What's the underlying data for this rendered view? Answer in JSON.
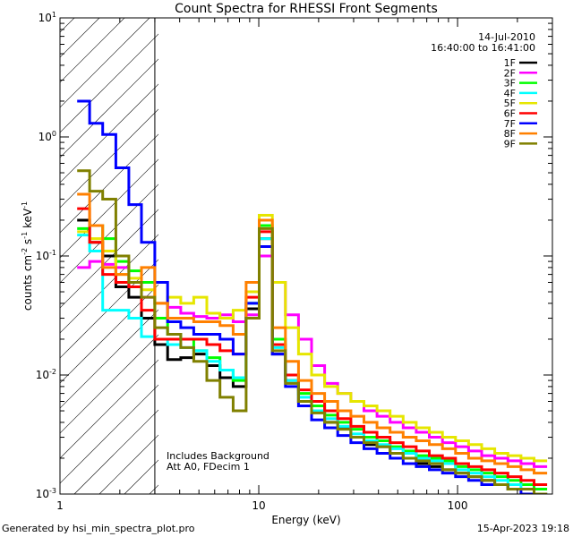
{
  "chart_data": {
    "type": "line",
    "title": "Count Spectra for RHESSI Front Segments",
    "xlabel": "Energy (keV)",
    "ylabel": {
      "prefix": "counts cm",
      "exp1": "-2",
      "mid1": " s",
      "exp2": "-1",
      "mid2": " keV",
      "exp3": "-1"
    },
    "xscale": "log",
    "yscale": "log",
    "xlim": [
      1,
      300
    ],
    "ylim": [
      0.001,
      10
    ],
    "x_ticks": [
      {
        "value": 1,
        "label": "1"
      },
      {
        "value": 10,
        "label": "10"
      },
      {
        "value": 100,
        "label": "100"
      }
    ],
    "y_ticks": [
      {
        "value": 0.001,
        "base": "10",
        "exp": "-3"
      },
      {
        "value": 0.01,
        "base": "10",
        "exp": "-2"
      },
      {
        "value": 0.1,
        "base": "10",
        "exp": "-1"
      },
      {
        "value": 1,
        "base": "10",
        "exp": "0"
      },
      {
        "value": 10,
        "base": "10",
        "exp": "1"
      }
    ],
    "legend_header": [
      "14-Jul-2010",
      "16:40:00 to 16:41:00"
    ],
    "legend_position": "top-right",
    "hatched_region": {
      "x_from": 1,
      "x_to": 3
    },
    "annotations": [
      "Includes Background",
      "Att A0, FDecim 1"
    ],
    "bin_edges": [
      1.22,
      1.41,
      1.64,
      1.91,
      2.22,
      2.57,
      3.0,
      3.48,
      4.05,
      4.71,
      5.48,
      6.38,
      7.43,
      8.64,
      10.05,
      11.7,
      13.61,
      15.84,
      18.43,
      21.45,
      24.96,
      29.05,
      33.8,
      39.33,
      45.77,
      53.26,
      61.98,
      72.12,
      83.93,
      97.67,
      113.65,
      132.25,
      153.9,
      179.09,
      208.4,
      242.51,
      282.2
    ],
    "series": [
      {
        "name": "1F",
        "color": "#000000",
        "values": [
          0.2,
          0.13,
          0.1,
          0.055,
          0.045,
          0.03,
          0.018,
          0.0135,
          0.014,
          0.015,
          0.012,
          0.0095,
          0.008,
          0.036,
          0.14,
          0.015,
          0.009,
          0.006,
          0.005,
          0.004,
          0.0036,
          0.003,
          0.0026,
          0.0025,
          0.0022,
          0.002,
          0.0018,
          0.0017,
          0.0016,
          0.0015,
          0.0014,
          0.0013,
          0.0012,
          0.0011,
          0.0011,
          0.001
        ]
      },
      {
        "name": "2F",
        "color": "#ff00ff",
        "values": [
          0.08,
          0.09,
          0.085,
          0.08,
          0.055,
          0.045,
          0.04,
          0.037,
          0.033,
          0.031,
          0.03,
          0.032,
          0.028,
          0.032,
          0.1,
          0.06,
          0.032,
          0.02,
          0.012,
          0.0085,
          0.007,
          0.006,
          0.005,
          0.0045,
          0.004,
          0.0036,
          0.0033,
          0.003,
          0.0027,
          0.0025,
          0.0023,
          0.0021,
          0.002,
          0.0019,
          0.0018,
          0.0017
        ]
      },
      {
        "name": "3F",
        "color": "#00ff00",
        "values": [
          0.17,
          0.18,
          0.14,
          0.09,
          0.075,
          0.06,
          0.03,
          0.022,
          0.02,
          0.016,
          0.014,
          0.011,
          0.009,
          0.04,
          0.18,
          0.02,
          0.01,
          0.007,
          0.0055,
          0.0046,
          0.004,
          0.0035,
          0.003,
          0.0028,
          0.0025,
          0.0023,
          0.0021,
          0.002,
          0.0019,
          0.0017,
          0.0016,
          0.0015,
          0.0014,
          0.0013,
          0.0012,
          0.0011
        ]
      },
      {
        "name": "4F",
        "color": "#00ffff",
        "values": [
          0.15,
          0.11,
          0.035,
          0.035,
          0.03,
          0.021,
          0.02,
          0.018,
          0.017,
          0.016,
          0.013,
          0.011,
          0.0095,
          0.04,
          0.14,
          0.017,
          0.009,
          0.0065,
          0.005,
          0.0043,
          0.0037,
          0.0032,
          0.0028,
          0.0026,
          0.0024,
          0.0022,
          0.002,
          0.0019,
          0.0018,
          0.0016,
          0.0015,
          0.0014,
          0.0013,
          0.0012,
          0.0011,
          0.001
        ]
      },
      {
        "name": "5F",
        "color": "#e6e600",
        "values": [
          0.16,
          0.14,
          0.11,
          0.07,
          0.065,
          0.052,
          0.04,
          0.045,
          0.04,
          0.045,
          0.033,
          0.03,
          0.035,
          0.05,
          0.22,
          0.06,
          0.025,
          0.015,
          0.01,
          0.008,
          0.007,
          0.006,
          0.0055,
          0.005,
          0.0045,
          0.004,
          0.0036,
          0.0033,
          0.003,
          0.0028,
          0.0026,
          0.0024,
          0.0022,
          0.0021,
          0.002,
          0.0019
        ]
      },
      {
        "name": "6F",
        "color": "#ff0000",
        "values": [
          0.25,
          0.13,
          0.07,
          0.06,
          0.055,
          0.035,
          0.02,
          0.02,
          0.02,
          0.02,
          0.018,
          0.016,
          0.015,
          0.045,
          0.16,
          0.018,
          0.01,
          0.0075,
          0.006,
          0.005,
          0.0043,
          0.0037,
          0.0033,
          0.003,
          0.0027,
          0.0025,
          0.0023,
          0.0021,
          0.002,
          0.0018,
          0.0017,
          0.0016,
          0.0015,
          0.0014,
          0.0013,
          0.0012
        ]
      },
      {
        "name": "7F",
        "color": "#0000ff",
        "values": [
          2.0,
          1.3,
          1.05,
          0.55,
          0.27,
          0.13,
          0.06,
          0.028,
          0.025,
          0.022,
          0.022,
          0.02,
          0.015,
          0.04,
          0.12,
          0.015,
          0.008,
          0.0055,
          0.0042,
          0.0036,
          0.0031,
          0.0027,
          0.0024,
          0.0022,
          0.002,
          0.0018,
          0.0017,
          0.0016,
          0.0015,
          0.0014,
          0.0013,
          0.0012,
          0.0012,
          0.0011,
          0.001,
          0.001
        ]
      },
      {
        "name": "8F",
        "color": "#ff8000",
        "values": [
          0.33,
          0.18,
          0.08,
          0.07,
          0.06,
          0.08,
          0.04,
          0.03,
          0.03,
          0.028,
          0.028,
          0.026,
          0.022,
          0.06,
          0.2,
          0.025,
          0.013,
          0.009,
          0.007,
          0.006,
          0.005,
          0.0045,
          0.004,
          0.0036,
          0.0033,
          0.003,
          0.0028,
          0.0026,
          0.0024,
          0.0022,
          0.002,
          0.0019,
          0.0018,
          0.0017,
          0.0016,
          0.0015
        ]
      },
      {
        "name": "9F",
        "color": "#808000",
        "values": [
          0.52,
          0.35,
          0.3,
          0.1,
          0.06,
          0.045,
          0.025,
          0.022,
          0.017,
          0.013,
          0.009,
          0.0065,
          0.005,
          0.03,
          0.17,
          0.016,
          0.0085,
          0.006,
          0.0048,
          0.004,
          0.0035,
          0.003,
          0.0027,
          0.0025,
          0.0022,
          0.002,
          0.0019,
          0.0018,
          0.0016,
          0.0015,
          0.0014,
          0.0013,
          0.0012,
          0.0011,
          0.0011,
          0.001
        ]
      }
    ]
  },
  "footer": {
    "generated_by": "Generated by hsi_min_spectra_plot.pro",
    "date": "15-Apr-2023 19:18"
  }
}
